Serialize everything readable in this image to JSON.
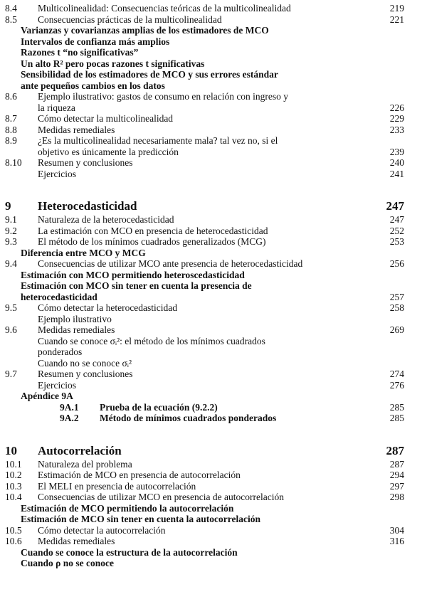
{
  "sections": [
    {
      "entries": [
        {
          "number": "8.4",
          "lines": [
            "Multicolinealidad: Consecuencias teóricas de la multicolinealidad"
          ],
          "page": "219",
          "level": 0
        },
        {
          "number": "8.5",
          "lines": [
            "Consecuencias prácticas de la multicolinealidad"
          ],
          "page": "221",
          "level": 0
        },
        {
          "lines": [
            "Varianzas y covarianzas amplias de los estimadores de MCO"
          ],
          "level": 1
        },
        {
          "lines": [
            "Intervalos de confianza más amplios"
          ],
          "level": 1
        },
        {
          "lines": [
            "Razones t “no significativas”"
          ],
          "level": 1
        },
        {
          "lines": [
            "Un alto R² pero pocas razones t significativas"
          ],
          "level": 1
        },
        {
          "lines": [
            "Sensibilidad de los estimadores de MCO y sus errores estándar",
            "ante pequeños cambios en los datos"
          ],
          "level": 1
        },
        {
          "number": "8.6",
          "lines": [
            "Ejemplo ilustrativo: gastos de consumo en relación con ingreso y",
            "la riqueza"
          ],
          "page": "226",
          "level": 0
        },
        {
          "number": "8.7",
          "lines": [
            "Cómo detectar la multicolinealidad"
          ],
          "page": "229",
          "level": 0
        },
        {
          "number": "8.8",
          "lines": [
            "Medidas remediales"
          ],
          "page": "233",
          "level": 0
        },
        {
          "number": "8.9",
          "lines": [
            "¿Es la multicolinealidad necesariamente mala? tal vez no, si el",
            "objetivo es únicamente la predicción"
          ],
          "page": "239",
          "level": 0
        },
        {
          "number": "8.10",
          "lines": [
            "Resumen y conclusiones"
          ],
          "page": "240",
          "level": 0
        },
        {
          "lines": [
            "Ejercicios"
          ],
          "page": "241",
          "level": 0
        }
      ]
    },
    {
      "heading": {
        "number": "9",
        "title": "Heterocedasticidad",
        "page": "247"
      },
      "entries": [
        {
          "number": "9.1",
          "lines": [
            "Naturaleza de la heterocedasticidad"
          ],
          "page": "247",
          "level": 0
        },
        {
          "number": "9.2",
          "lines": [
            "La estimación con MCO en presencia de heterocedasticidad"
          ],
          "page": "252",
          "level": 0
        },
        {
          "number": "9.3",
          "lines": [
            "El método de los mínimos cuadrados generalizados (MCG)"
          ],
          "page": "253",
          "level": 0
        },
        {
          "lines": [
            "Diferencia entre MCO y MCG"
          ],
          "level": 1
        },
        {
          "number": "9.4",
          "lines": [
            "Consecuencias de utilizar MCO ante presencia de heterocedasticidad"
          ],
          "page": "256",
          "level": 0
        },
        {
          "lines": [
            "Estimación con MCO permitiendo heteroscedasticidad"
          ],
          "level": 1
        },
        {
          "lines": [
            "Estimación con MCO sin tener en cuenta la presencia de",
            "heterocedasticidad"
          ],
          "page": "257",
          "level": 1
        },
        {
          "number": "9.5",
          "lines": [
            "Cómo detectar la heterocedasticidad"
          ],
          "page": "258",
          "level": 0
        },
        {
          "lines": [
            "Ejemplo ilustrativo"
          ],
          "level": 0
        },
        {
          "number": "9.6",
          "lines": [
            "Medidas remediales"
          ],
          "page": "269",
          "level": 0
        },
        {
          "lines": [
            "Cuando se conoce σᵢ²: el método de los mínimos cuadrados",
            "ponderados"
          ],
          "level": 0
        },
        {
          "lines": [
            "Cuando no se conoce σᵢ²"
          ],
          "level": 0
        },
        {
          "number": "9.7",
          "lines": [
            "Resumen y conclusiones"
          ],
          "page": "274",
          "level": 0
        },
        {
          "lines": [
            "Ejercicios"
          ],
          "page": "276",
          "level": 0
        },
        {
          "lines": [
            "Apéndice 9A"
          ],
          "level": 1
        },
        {
          "number": "9A.1",
          "lines": [
            "Prueba de la ecuación (9.2.2)"
          ],
          "page": "285",
          "level": 2
        },
        {
          "number": "9A.2",
          "lines": [
            "Método de mínimos cuadrados ponderados"
          ],
          "page": "285",
          "level": 2
        }
      ]
    },
    {
      "heading": {
        "number": "10",
        "title": "Autocorrelación",
        "page": "287"
      },
      "entries": [
        {
          "number": "10.1",
          "lines": [
            "Naturaleza del problema"
          ],
          "page": "287",
          "level": 0
        },
        {
          "number": "10.2",
          "lines": [
            "Estimación de MCO en presencia de autocorrelación"
          ],
          "page": "294",
          "level": 0
        },
        {
          "number": "10.3",
          "lines": [
            "El MELI en presencia de autocorrelación"
          ],
          "page": "297",
          "level": 0
        },
        {
          "number": "10.4",
          "lines": [
            "Consecuencias de utilizar MCO en presencia de autocorrelación"
          ],
          "page": "298",
          "level": 0
        },
        {
          "lines": [
            "Estimación de MCO permitiendo la autocorrelación"
          ],
          "level": 1
        },
        {
          "lines": [
            "Estimación de MCO sin tener en cuenta la autocorrelación"
          ],
          "level": 1
        },
        {
          "number": "10.5",
          "lines": [
            "Cómo detectar la autocorrelación"
          ],
          "page": "304",
          "level": 0
        },
        {
          "number": "10.6",
          "lines": [
            "Medidas remediales"
          ],
          "page": "316",
          "level": 0
        },
        {
          "lines": [
            "Cuando se conoce la estructura de la autocorrelación"
          ],
          "level": 1
        },
        {
          "lines": [
            "Cuando ρ no se conoce"
          ],
          "level": 1
        }
      ]
    }
  ]
}
